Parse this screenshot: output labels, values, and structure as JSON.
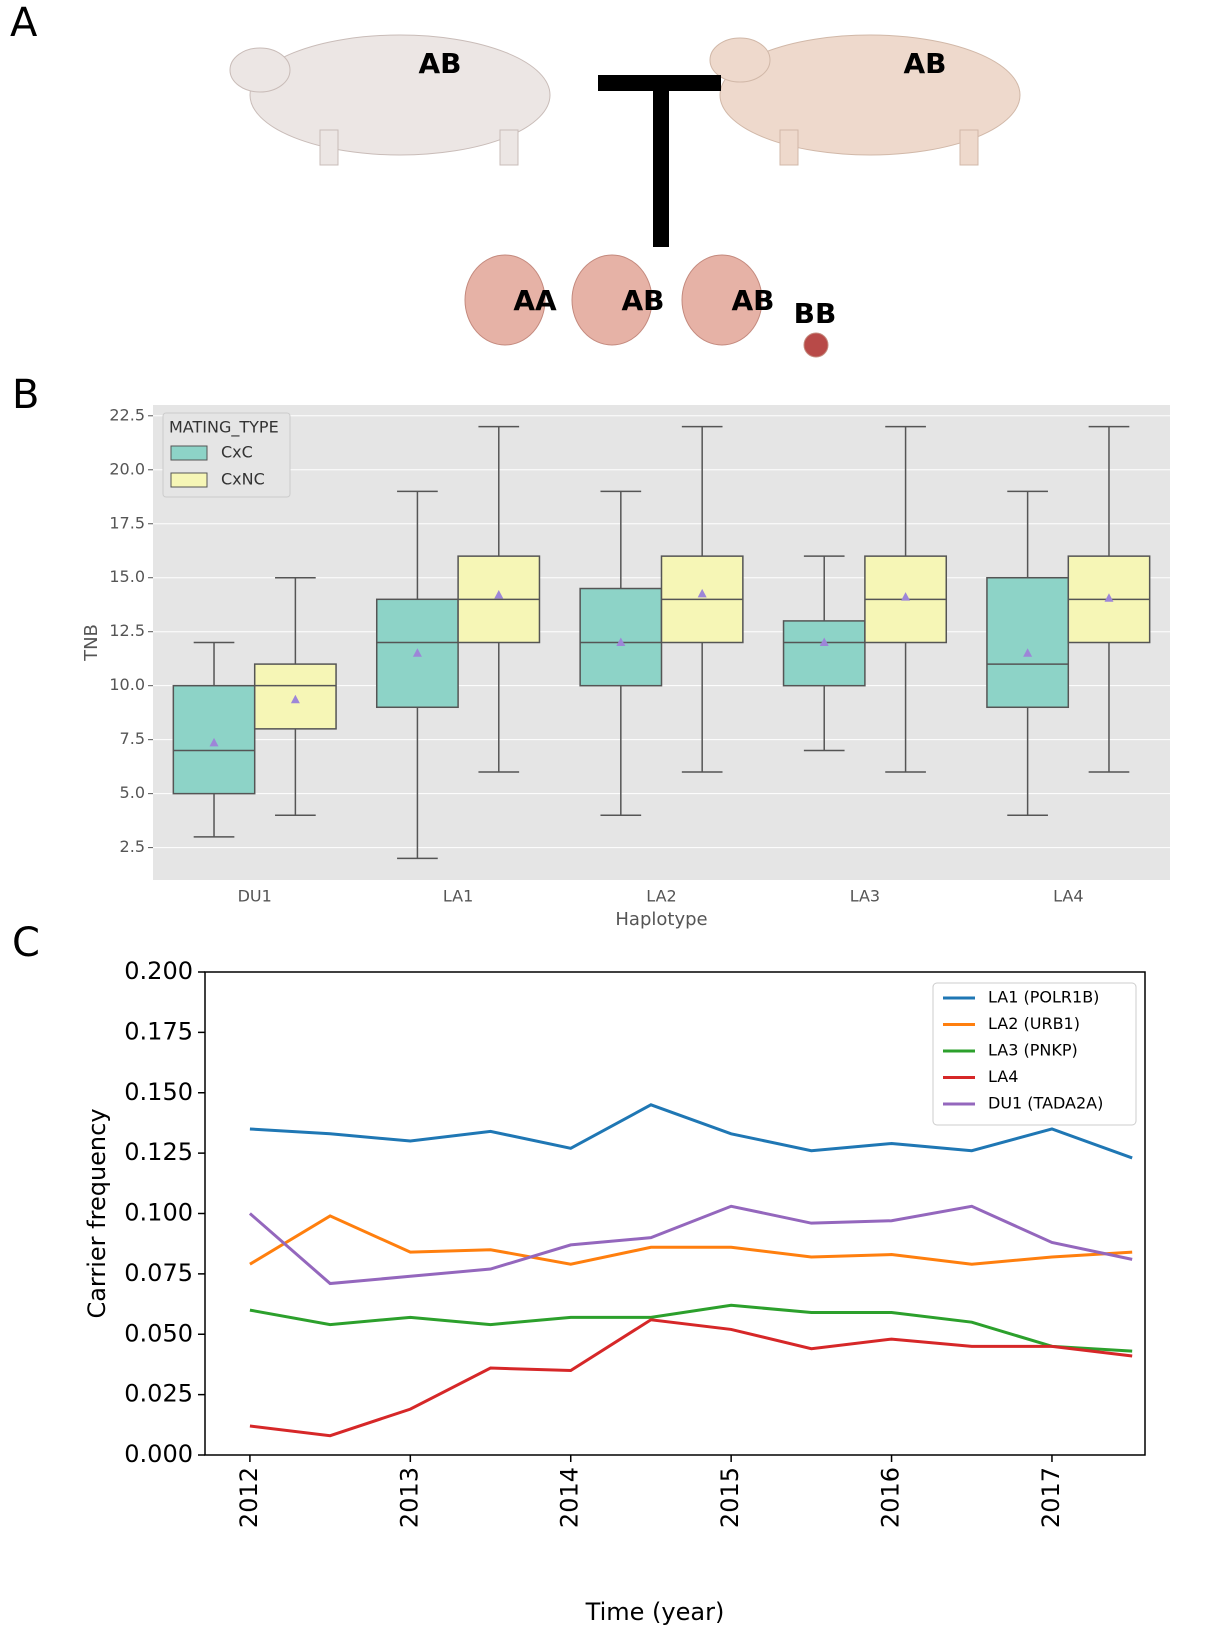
{
  "diagram": {
    "panel_label": "A",
    "parents": [
      "AB",
      "AB"
    ],
    "offspring": [
      "AA",
      "AB",
      "AB",
      "BB"
    ]
  },
  "chart_data": [
    {
      "type": "box",
      "panel_label": "B",
      "x_label": "Haplotype",
      "y_label": "TNB",
      "categories": [
        "DU1",
        "LA1",
        "LA2",
        "LA3",
        "LA4"
      ],
      "legend_title": "MATING_TYPE",
      "legend": "upper left",
      "grid": true,
      "mean_color": "#9d86d8",
      "ylim": [
        1.0,
        23.0
      ],
      "yticks": [
        2.5,
        {
          "value": 5,
          "label": "5.0"
        },
        7.5,
        {
          "value": 10,
          "label": "10.0"
        },
        12.5,
        {
          "value": 15,
          "label": "15.0"
        },
        17.5,
        {
          "value": 20,
          "label": "20.0"
        },
        22.5
      ],
      "series": [
        {
          "name": "CxC",
          "color": "#8dd3c7",
          "min": [
            3,
            2,
            4,
            7,
            4
          ],
          "q1": [
            5,
            9,
            10,
            10,
            9
          ],
          "median": [
            7,
            12,
            12,
            12,
            11
          ],
          "q3": [
            10,
            14,
            14.5,
            13,
            15
          ],
          "max": [
            12,
            19,
            19,
            16,
            19
          ],
          "mean": [
            7.35,
            11.5,
            12.0,
            12.0,
            11.5
          ]
        },
        {
          "name": "CxNC",
          "color": "#f6f6b6",
          "min": [
            4,
            6,
            6,
            6,
            6
          ],
          "q1": [
            8,
            12,
            12,
            12,
            12
          ],
          "median": [
            10,
            14,
            14,
            14,
            14
          ],
          "q3": [
            11,
            16,
            16,
            16,
            16
          ],
          "max": [
            15,
            22,
            22,
            22,
            22
          ],
          "mean": [
            9.35,
            14.2,
            14.25,
            14.1,
            14.05
          ]
        }
      ]
    },
    {
      "type": "line",
      "panel_label": "C",
      "x_label": "Time (year)",
      "y_label": "Carrier frequency",
      "legend": "upper right",
      "x": [
        2012,
        2012.5,
        2013,
        2013.5,
        2014,
        2014.5,
        2015,
        2015.5,
        2016,
        2016.5,
        2017,
        2017.5
      ],
      "xlim": [
        2011.72,
        2017.58
      ],
      "xticks": [
        2012,
        2013,
        2014,
        2015,
        2016,
        2017
      ],
      "ylim": [
        0,
        0.2
      ],
      "yticks": [
        {
          "value": 0,
          "label": "0.000"
        },
        0.025,
        {
          "value": 0.05,
          "label": "0.050"
        },
        0.075,
        {
          "value": 0.1,
          "label": "0.100"
        },
        0.125,
        {
          "value": 0.15,
          "label": "0.150"
        },
        0.175,
        {
          "value": 0.2,
          "label": "0.200"
        }
      ],
      "series": [
        {
          "name": "LA1 (POLR1B)",
          "color": "#1f77b4",
          "values": [
            0.135,
            0.133,
            0.13,
            0.134,
            0.127,
            0.145,
            0.133,
            0.126,
            0.129,
            0.126,
            0.135,
            0.123
          ]
        },
        {
          "name": "LA2 (URB1)",
          "color": "#ff7f0e",
          "values": [
            0.079,
            0.099,
            0.084,
            0.085,
            0.079,
            0.086,
            0.086,
            0.082,
            0.083,
            0.079,
            0.082,
            0.084
          ]
        },
        {
          "name": "LA3 (PNKP)",
          "color": "#2ca02c",
          "values": [
            0.06,
            0.054,
            0.057,
            0.054,
            0.057,
            0.057,
            0.062,
            0.059,
            0.059,
            0.055,
            0.045,
            0.043
          ]
        },
        {
          "name": "LA4",
          "color": "#d62728",
          "values": [
            0.012,
            0.008,
            0.019,
            0.036,
            0.035,
            0.056,
            0.052,
            0.044,
            0.048,
            0.045,
            0.045,
            0.041
          ]
        },
        {
          "name": "DU1 (TADA2A)",
          "color": "#9467bd",
          "values": [
            0.1,
            0.071,
            0.074,
            0.077,
            0.087,
            0.09,
            0.103,
            0.096,
            0.097,
            0.103,
            0.088,
            0.081
          ]
        }
      ]
    }
  ]
}
